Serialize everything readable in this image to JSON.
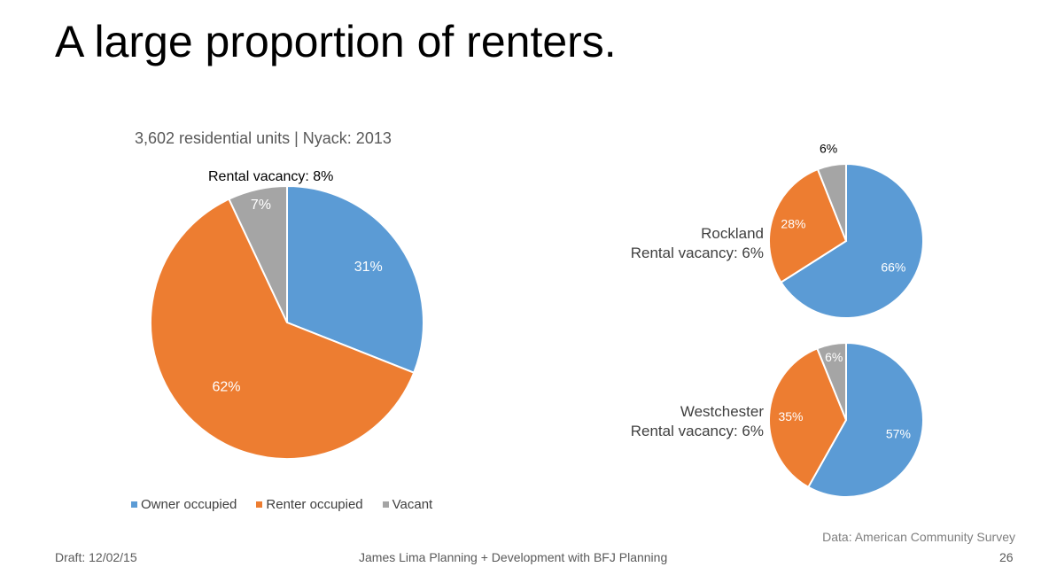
{
  "slide": {
    "title": "A large proportion of renters.",
    "source": "Data: American Community Survey",
    "footer_left": "Draft: 12/02/15",
    "footer_center": "James Lima Planning + Development with BFJ Planning",
    "page_number": "26"
  },
  "colors": {
    "owner": "#5b9bd5",
    "renter": "#ed7d31",
    "vacant": "#a5a5a5"
  },
  "chart_data": [
    {
      "type": "pie",
      "id": "nyack",
      "title": "3,602 residential units | Nyack: 2013",
      "note": "Rental vacancy: 8%",
      "categories": [
        "Owner occupied",
        "Renter occupied",
        "Vacant"
      ],
      "values": [
        31,
        62,
        7
      ],
      "labels": [
        "31%",
        "62%",
        "7%"
      ],
      "legend": "bottom"
    },
    {
      "type": "pie",
      "id": "rockland",
      "title": "Rockland",
      "note": "Rental vacancy: 6%",
      "categories": [
        "Owner occupied",
        "Renter occupied",
        "Vacant"
      ],
      "values": [
        66,
        28,
        6
      ],
      "labels": [
        "66%",
        "28%",
        "6%"
      ]
    },
    {
      "type": "pie",
      "id": "westchester",
      "title": "Westchester",
      "note": "Rental vacancy: 6%",
      "categories": [
        "Owner occupied",
        "Renter occupied",
        "Vacant"
      ],
      "values": [
        57,
        35,
        6
      ],
      "labels": [
        "57%",
        "35%",
        "6%"
      ]
    }
  ]
}
